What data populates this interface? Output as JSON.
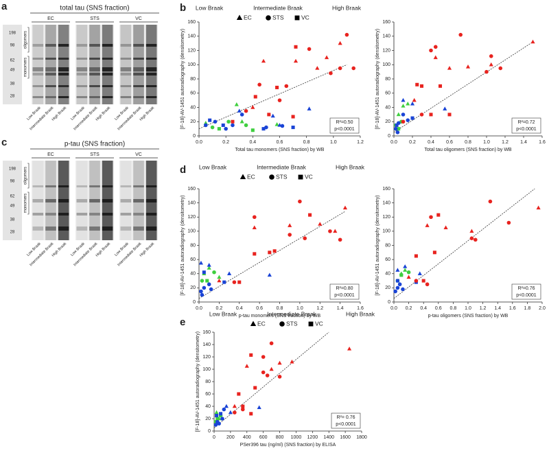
{
  "panel_letters": [
    "a",
    "b",
    "c",
    "d",
    "e"
  ],
  "blots": [
    {
      "title": "total tau (SNS fraction)",
      "groups": [
        "EC",
        "STS",
        "VC"
      ],
      "mw": [
        "198",
        "98",
        "62",
        "49",
        "38",
        "28"
      ],
      "regions": [
        "oligomers",
        "monomers"
      ],
      "lanes": [
        "Low Braak",
        "Intermediate Braak",
        "High Braak"
      ]
    },
    {
      "title": "p-tau (SNS fraction)",
      "groups": [
        "EC",
        "STS",
        "VC"
      ],
      "mw": [
        "198",
        "98",
        "62",
        "49",
        "38",
        "28"
      ],
      "regions": [
        "oligomers",
        "monomers"
      ],
      "lanes": [
        "Low Braak",
        "Intermediate Braak",
        "High Braak"
      ]
    }
  ],
  "legends": [
    {
      "groups": [
        {
          "label": "Low Braak",
          "color": "#3fcf3f"
        },
        {
          "label": "Intermediate Braak",
          "color": "#2a6fdb"
        },
        {
          "label": "High Braak",
          "color": "#e8231f"
        }
      ],
      "markers": [
        {
          "label": "EC",
          "shape": "triangle"
        },
        {
          "label": "STS",
          "shape": "circle"
        },
        {
          "label": "VC",
          "shape": "square"
        }
      ]
    },
    {
      "groups": [
        {
          "label": "Low Braak",
          "color": "#3fcf3f"
        },
        {
          "label": "Intermediate Braak",
          "color": "#2a6fdb"
        },
        {
          "label": "High Braak",
          "color": "#e8231f"
        }
      ],
      "markers": [
        {
          "label": "EC",
          "shape": "triangle"
        },
        {
          "label": "STS",
          "shape": "circle"
        },
        {
          "label": "VC",
          "shape": "square"
        }
      ]
    },
    {
      "groups": [
        {
          "label": "Low Braak",
          "color": "#3fcf3f"
        },
        {
          "label": "Intermediate Braak",
          "color": "#2a6fdb"
        },
        {
          "label": "High Braak",
          "color": "#e8231f"
        }
      ],
      "markers": [
        {
          "label": "EC",
          "shape": "triangle"
        },
        {
          "label": "STS",
          "shape": "circle"
        },
        {
          "label": "VC",
          "shape": "square"
        }
      ]
    }
  ],
  "chart_data": [
    {
      "type": "scatter",
      "x_label": "Total tau monomers (SNS fraction) by WB",
      "y_label": "[F-18]-AV-1451 autoradiography (densitometry)",
      "xlim": [
        0,
        1.2
      ],
      "ylim": [
        0,
        160
      ],
      "xticks": [
        {
          "value": 0,
          "label": "0.0"
        },
        0.2,
        0.4,
        0.6,
        0.8,
        {
          "value": 1,
          "label": "1.0"
        },
        1.2
      ],
      "yticks": [
        0,
        20,
        40,
        60,
        80,
        100,
        120,
        140,
        160
      ],
      "annotation": [
        "R²=0.50",
        "p<0.0001"
      ],
      "trendline": {
        "x": [
          0,
          1.1
        ],
        "y": [
          10,
          100
        ]
      },
      "series": [
        {
          "color": "#3fcf3f",
          "marker": "triangle",
          "x": [
            0.05,
            0.28,
            0.32,
            0.58
          ],
          "y": [
            18,
            44,
            20,
            16
          ]
        },
        {
          "color": "#3fcf3f",
          "marker": "circle",
          "x": [
            0.1,
            0.22,
            0.35
          ],
          "y": [
            12,
            20,
            15
          ]
        },
        {
          "color": "#3fcf3f",
          "marker": "square",
          "x": [
            0.15,
            0.4
          ],
          "y": [
            10,
            8
          ]
        },
        {
          "color": "#1a44d6",
          "marker": "triangle",
          "x": [
            0.3,
            0.55,
            0.82,
            0.6
          ],
          "y": [
            35,
            28,
            38,
            15
          ]
        },
        {
          "color": "#1a44d6",
          "marker": "circle",
          "x": [
            0.05,
            0.12,
            0.2,
            0.25,
            0.32,
            0.5,
            0.62
          ],
          "y": [
            15,
            20,
            10,
            15,
            30,
            12,
            14
          ]
        },
        {
          "color": "#1a44d6",
          "marker": "square",
          "x": [
            0.08,
            0.18,
            0.48,
            0.7
          ],
          "y": [
            22,
            15,
            10,
            12
          ]
        },
        {
          "color": "#e8231f",
          "marker": "triangle",
          "x": [
            0.48,
            0.72,
            0.88,
            0.95,
            1.05,
            0.4
          ],
          "y": [
            105,
            105,
            95,
            110,
            130,
            40
          ]
        },
        {
          "color": "#e8231f",
          "marker": "circle",
          "x": [
            0.45,
            0.65,
            0.82,
            0.98,
            1.1,
            0.35,
            0.6,
            1.05,
            1.15
          ],
          "y": [
            72,
            70,
            122,
            88,
            142,
            35,
            50,
            95,
            95
          ]
        },
        {
          "color": "#e8231f",
          "marker": "square",
          "x": [
            0.42,
            0.58,
            0.72,
            0.52,
            0.25,
            0.7
          ],
          "y": [
            55,
            68,
            125,
            30,
            20,
            27
          ]
        }
      ]
    },
    {
      "type": "scatter",
      "x_label": "Total tau oligomers (SNS fraction) by WB",
      "y_label": "[F-18]-AV-1451 autoradiography (densitometry)",
      "xlim": [
        0,
        1.6
      ],
      "ylim": [
        0,
        160
      ],
      "xticks": [
        {
          "value": 0,
          "label": "0.0"
        },
        0.2,
        0.4,
        0.6,
        0.8,
        {
          "value": 1,
          "label": "1.0"
        },
        1.2,
        1.4,
        1.6
      ],
      "yticks": [
        0,
        20,
        40,
        60,
        80,
        100,
        120,
        140,
        160
      ],
      "annotation": [
        "R²=0.72",
        "p<0.0001"
      ],
      "trendline": {
        "x": [
          0,
          1.5
        ],
        "y": [
          5,
          132
        ]
      },
      "series": [
        {
          "color": "#3fcf3f",
          "marker": "triangle",
          "x": [
            0.05,
            0.1,
            0.15
          ],
          "y": [
            30,
            42,
            45
          ]
        },
        {
          "color": "#3fcf3f",
          "marker": "circle",
          "x": [
            0.02,
            0.08
          ],
          "y": [
            15,
            20
          ]
        },
        {
          "color": "#3fcf3f",
          "marker": "square",
          "x": [
            0.05
          ],
          "y": [
            10
          ]
        },
        {
          "color": "#1a44d6",
          "marker": "triangle",
          "x": [
            0.1,
            0.2,
            0.55
          ],
          "y": [
            50,
            45,
            38
          ]
        },
        {
          "color": "#1a44d6",
          "marker": "circle",
          "x": [
            0.02,
            0.05,
            0.1,
            0.15,
            0.04
          ],
          "y": [
            10,
            18,
            30,
            22,
            5
          ]
        },
        {
          "color": "#1a44d6",
          "marker": "square",
          "x": [
            0.03,
            0.2
          ],
          "y": [
            15,
            25
          ]
        },
        {
          "color": "#e8231f",
          "marker": "triangle",
          "x": [
            0.45,
            0.6,
            0.8,
            1.05,
            1.5,
            0.22
          ],
          "y": [
            110,
            95,
            97,
            100,
            132,
            50
          ]
        },
        {
          "color": "#e8231f",
          "marker": "circle",
          "x": [
            0.4,
            0.45,
            0.72,
            1.0,
            1.05,
            1.15,
            0.1,
            0.3
          ],
          "y": [
            120,
            125,
            142,
            90,
            112,
            95,
            20,
            30
          ]
        },
        {
          "color": "#e8231f",
          "marker": "square",
          "x": [
            0.3,
            0.5,
            0.25,
            0.4,
            0.6
          ],
          "y": [
            70,
            70,
            72,
            30,
            30
          ]
        }
      ]
    },
    {
      "type": "scatter",
      "x_label": "p-tau monomers (SNS fraction) by WB",
      "y_label": "[F-18]-AV-1451 autoradiography (densitometry)",
      "xlim": [
        0,
        1.6
      ],
      "ylim": [
        0,
        160
      ],
      "xticks": [
        {
          "value": 0,
          "label": "0.0"
        },
        0.2,
        0.4,
        0.6,
        0.8,
        {
          "value": 1,
          "label": "1.0"
        },
        1.2,
        1.4,
        1.6
      ],
      "yticks": [
        0,
        20,
        40,
        60,
        80,
        100,
        120,
        140,
        160
      ],
      "annotation": [
        "R²=0.80",
        "p<0.0001"
      ],
      "trendline": {
        "x": [
          0,
          1.45
        ],
        "y": [
          5,
          128
        ]
      },
      "series": [
        {
          "color": "#3fcf3f",
          "marker": "triangle",
          "x": [
            0.05,
            0.1,
            0.2
          ],
          "y": [
            40,
            48,
            35
          ]
        },
        {
          "color": "#3fcf3f",
          "marker": "circle",
          "x": [
            0.03,
            0.15
          ],
          "y": [
            30,
            42
          ]
        },
        {
          "color": "#3fcf3f",
          "marker": "square",
          "x": [
            0.08
          ],
          "y": [
            30
          ]
        },
        {
          "color": "#1a44d6",
          "marker": "triangle",
          "x": [
            0.02,
            0.1,
            0.3,
            0.7
          ],
          "y": [
            55,
            52,
            40,
            38
          ]
        },
        {
          "color": "#1a44d6",
          "marker": "circle",
          "x": [
            0.02,
            0.05,
            0.1,
            0.03,
            0.12
          ],
          "y": [
            15,
            20,
            25,
            10,
            18
          ]
        },
        {
          "color": "#1a44d6",
          "marker": "square",
          "x": [
            0.05,
            0.25
          ],
          "y": [
            42,
            28
          ]
        },
        {
          "color": "#e8231f",
          "marker": "triangle",
          "x": [
            0.55,
            0.9,
            1.2,
            1.35,
            1.45,
            0.2
          ],
          "y": [
            105,
            108,
            110,
            100,
            133,
            30
          ]
        },
        {
          "color": "#e8231f",
          "marker": "circle",
          "x": [
            0.55,
            1.0,
            1.05,
            1.3,
            1.4,
            0.9,
            0.35
          ],
          "y": [
            120,
            142,
            90,
            100,
            88,
            95,
            28
          ]
        },
        {
          "color": "#e8231f",
          "marker": "square",
          "x": [
            0.55,
            0.75,
            1.1,
            0.4,
            0.7
          ],
          "y": [
            68,
            72,
            123,
            28,
            70
          ]
        }
      ]
    },
    {
      "type": "scatter",
      "x_label": "p-tau oligomers (SNS fraction) by WB",
      "y_label": "[F-18]-AV-1451 autoradiography (densitometry)",
      "xlim": [
        0,
        2
      ],
      "ylim": [
        0,
        160
      ],
      "xticks": [
        {
          "value": 0,
          "label": "0.0"
        },
        0.2,
        0.4,
        0.6,
        0.8,
        {
          "value": 1,
          "label": "1.0"
        },
        1.2,
        1.4,
        1.6,
        1.8,
        {
          "value": 2,
          "label": "2.0"
        }
      ],
      "yticks": [
        0,
        20,
        40,
        60,
        80,
        100,
        120,
        140,
        160
      ],
      "annotation": [
        "R²=0.76",
        "p<0.0001"
      ],
      "trendline": {
        "x": [
          0,
          1.9
        ],
        "y": [
          5,
          160
        ]
      },
      "series": [
        {
          "color": "#3fcf3f",
          "marker": "triangle",
          "x": [
            0.1,
            0.15
          ],
          "y": [
            40,
            45
          ]
        },
        {
          "color": "#3fcf3f",
          "marker": "circle",
          "x": [
            0.05,
            0.2
          ],
          "y": [
            30,
            42
          ]
        },
        {
          "color": "#3fcf3f",
          "marker": "square",
          "x": [
            0.1
          ],
          "y": [
            38
          ]
        },
        {
          "color": "#1a44d6",
          "marker": "triangle",
          "x": [
            0.05,
            0.15,
            0.35
          ],
          "y": [
            45,
            50,
            40
          ]
        },
        {
          "color": "#1a44d6",
          "marker": "circle",
          "x": [
            0.02,
            0.05,
            0.08,
            0.12
          ],
          "y": [
            15,
            20,
            25,
            18
          ]
        },
        {
          "color": "#1a44d6",
          "marker": "square",
          "x": [
            0.05,
            0.3
          ],
          "y": [
            30,
            28
          ]
        },
        {
          "color": "#e8231f",
          "marker": "triangle",
          "x": [
            0.45,
            0.7,
            1.05,
            1.95,
            0.2
          ],
          "y": [
            108,
            105,
            100,
            133,
            35
          ]
        },
        {
          "color": "#e8231f",
          "marker": "circle",
          "x": [
            0.5,
            1.05,
            1.1,
            1.3,
            1.55,
            0.3,
            0.45
          ],
          "y": [
            120,
            90,
            88,
            142,
            112,
            30,
            25
          ]
        },
        {
          "color": "#e8231f",
          "marker": "square",
          "x": [
            0.6,
            0.55,
            0.3,
            0.4
          ],
          "y": [
            123,
            70,
            65,
            30
          ]
        }
      ]
    },
    {
      "type": "scatter",
      "x_label": "PSer396 tau (ng/ml) (SNS fraction) by ELISA",
      "y_label": "[F-18]-AV-1451 autoradiography (densitometry)",
      "xlim": [
        0,
        1800
      ],
      "ylim": [
        0,
        160
      ],
      "xticks": [
        0,
        200,
        400,
        600,
        800,
        1000,
        1200,
        1400,
        1600,
        1800
      ],
      "yticks": [
        0,
        20,
        40,
        60,
        80,
        100,
        120,
        140,
        160
      ],
      "annotation": [
        "R²= 0.76",
        "p<0.0001"
      ],
      "trendline": {
        "x": [
          0,
          1400
        ],
        "y": [
          5,
          160
        ]
      },
      "series": [
        {
          "color": "#3fcf3f",
          "marker": "triangle",
          "x": [
            30,
            60
          ],
          "y": [
            30,
            20
          ]
        },
        {
          "color": "#3fcf3f",
          "marker": "circle",
          "x": [
            20,
            80
          ],
          "y": [
            15,
            25
          ]
        },
        {
          "color": "#3fcf3f",
          "marker": "square",
          "x": [
            40
          ],
          "y": [
            20
          ]
        },
        {
          "color": "#1a44d6",
          "marker": "triangle",
          "x": [
            150,
            550,
            200
          ],
          "y": [
            40,
            38,
            30
          ]
        },
        {
          "color": "#1a44d6",
          "marker": "circle",
          "x": [
            20,
            40,
            100,
            120,
            60
          ],
          "y": [
            10,
            15,
            20,
            35,
            12
          ]
        },
        {
          "color": "#1a44d6",
          "marker": "square",
          "x": [
            30,
            80
          ],
          "y": [
            25,
            28
          ]
        },
        {
          "color": "#e8231f",
          "marker": "triangle",
          "x": [
            400,
            700,
            800,
            950,
            1650,
            250
          ],
          "y": [
            105,
            100,
            110,
            112,
            133,
            40
          ]
        },
        {
          "color": "#e8231f",
          "marker": "circle",
          "x": [
            600,
            700,
            650,
            600,
            800,
            250,
            350
          ],
          "y": [
            120,
            142,
            90,
            95,
            88,
            30,
            35
          ]
        },
        {
          "color": "#e8231f",
          "marker": "square",
          "x": [
            450,
            500,
            300,
            350,
            450
          ],
          "y": [
            123,
            70,
            60,
            40,
            28
          ]
        }
      ]
    }
  ]
}
